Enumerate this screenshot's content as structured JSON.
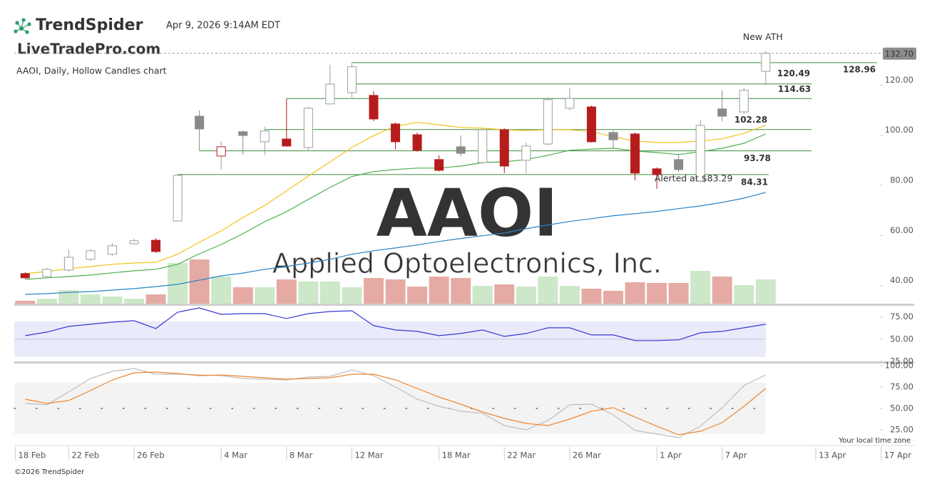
{
  "header": {
    "brand": "TrendSpider",
    "timestamp": "Apr 9, 2026 9:14AM EDT",
    "site": "LiveTradePro.com",
    "chart_label": "AAOI, Daily, Hollow Candles chart",
    "time_zone_note": "Your local time zone",
    "footer": "©2026 TrendSpider"
  },
  "chart_data": [
    {
      "type": "candlestick",
      "watermark_symbol": "AAOI",
      "watermark_company": "Applied Optoelectronics, Inc.",
      "open": [
        44.8,
        43.6,
        46.2,
        50.5,
        52.5,
        56.7,
        58.1,
        65.8,
        107.6,
        91.7,
        101.4,
        97.4,
        98.5,
        95.1,
        112.5,
        117.0,
        115.9,
        104.5,
        100.2,
        90.3,
        95.4,
        89.1,
        102.2,
        90.0,
        96.5,
        110.8,
        111.3,
        101.1,
        100.5,
        86.6,
        90.3,
        81.7,
        110.5,
        109.3,
        125.5
      ],
      "high": [
        45.3,
        47.1,
        54.4,
        54.7,
        57.0,
        58.7,
        59.0,
        84.31,
        109.9,
        97.7,
        101.9,
        103.4,
        114.63,
        111.3,
        128.1,
        128.96,
        117.6,
        105.1,
        101.1,
        92.0,
        99.9,
        102.8,
        102.8,
        97.1,
        115.0,
        119.0,
        111.9,
        101.9,
        101.1,
        87.2,
        92.6,
        106.2,
        117.9,
        119.0,
        133.6
      ],
      "low": [
        42.8,
        43.1,
        45.6,
        49.9,
        51.9,
        56.4,
        53.0,
        65.5,
        93.78,
        86.3,
        92.3,
        92.0,
        95.4,
        94.0,
        112.5,
        115.0,
        105.6,
        94.3,
        93.4,
        85.5,
        91.7,
        88.6,
        84.9,
        84.9,
        96.0,
        109.9,
        97.1,
        94.8,
        82.0,
        78.6,
        85.2,
        81.2,
        105.6,
        108.5,
        119.9
      ],
      "close": [
        43.1,
        46.5,
        51.3,
        53.9,
        55.9,
        57.9,
        53.6,
        84.0,
        102.5,
        95.4,
        99.9,
        101.7,
        95.7,
        110.8,
        120.4,
        127.3,
        106.5,
        97.4,
        94.0,
        86.0,
        92.8,
        102.2,
        87.7,
        95.7,
        114.2,
        114.7,
        97.4,
        98.2,
        84.9,
        84.3,
        86.3,
        103.9,
        107.6,
        117.9,
        132.7
      ],
      "volume": [
        4,
        7,
        19,
        13,
        10,
        7,
        13,
        57,
        62,
        38,
        23,
        23,
        34,
        31,
        31,
        23,
        36,
        34,
        24,
        38,
        36,
        25,
        27,
        24,
        38,
        25,
        21,
        18,
        30,
        29,
        29,
        46,
        38,
        26,
        34
      ],
      "up_color": "#8a8a8a",
      "down_color": "#b71c1c",
      "volume_up_color": "#cce8c8",
      "volume_down_color": "#e6aaa4",
      "overlays": [
        {
          "color": "#f2c219",
          "values": [
            44.8,
            45.6,
            46.8,
            47.6,
            48.5,
            49.0,
            49.3,
            52.5,
            57.3,
            61.8,
            67.2,
            72.0,
            77.8,
            83.7,
            89.4,
            95.1,
            99.9,
            103.6,
            105.1,
            104.2,
            103.1,
            102.8,
            102.2,
            101.9,
            102.2,
            102.2,
            101.4,
            99.4,
            97.7,
            97.1,
            97.1,
            97.7,
            98.6,
            100.8,
            104.0
          ]
        },
        {
          "color": "#4caf50",
          "values": [
            42.5,
            43.1,
            43.6,
            44.2,
            45.1,
            45.9,
            46.5,
            48.5,
            52.7,
            56.4,
            60.7,
            65.5,
            69.5,
            74.4,
            79.2,
            83.5,
            85.5,
            86.3,
            86.9,
            86.9,
            87.7,
            89.1,
            89.4,
            90.3,
            92.0,
            94.0,
            94.5,
            94.8,
            93.7,
            93.1,
            92.3,
            93.4,
            94.8,
            96.8,
            100.5
          ]
        },
        {
          "color": "#2b83c6",
          "values": [
            36.5,
            36.8,
            37.3,
            37.6,
            38.2,
            38.8,
            39.6,
            40.5,
            42.2,
            43.9,
            45.0,
            46.5,
            47.6,
            49.0,
            50.5,
            52.5,
            53.9,
            55.0,
            56.2,
            57.6,
            58.8,
            59.9,
            61.0,
            62.7,
            64.2,
            65.6,
            66.7,
            67.9,
            68.7,
            69.6,
            70.7,
            71.8,
            73.2,
            74.9,
            77.2
          ]
        }
      ],
      "levels": [
        128.96,
        120.49,
        114.63,
        102.28,
        93.78,
        84.31
      ],
      "level_color": "#3d8c3d",
      "last_price": {
        "value": 132.7,
        "label": "132.70"
      },
      "annotations": [
        {
          "text": "New ATH",
          "candle": 34,
          "position": "above"
        },
        {
          "text": "Alerted at $83.29",
          "candle": 30,
          "position": "below"
        }
      ],
      "xlim": [
        -0.5,
        40.75
      ],
      "xticks": [
        {
          "value": -0.45,
          "label": "18 Feb"
        },
        {
          "value": 2,
          "label": "22 Feb"
        },
        {
          "value": 5,
          "label": "26 Feb"
        },
        {
          "value": 9,
          "label": "4 Mar"
        },
        {
          "value": 12,
          "label": "8 Mar"
        },
        {
          "value": 15,
          "label": "12 Mar"
        },
        {
          "value": 19,
          "label": "18 Mar"
        },
        {
          "value": 22,
          "label": "22 Mar"
        },
        {
          "value": 25,
          "label": "26 Mar"
        },
        {
          "value": 29,
          "label": "1 Apr"
        },
        {
          "value": 32,
          "label": "7 Apr"
        },
        {
          "value": 36.3,
          "label": "13 Apr"
        },
        {
          "value": 39.3,
          "label": "17 Apr"
        }
      ],
      "ylim": [
        32.8,
        136.9
      ],
      "yticks": [
        {
          "value": 40,
          "label": "40.00"
        },
        {
          "value": 60,
          "label": "60.00"
        },
        {
          "value": 80,
          "label": "80.00"
        },
        {
          "value": 100,
          "label": "100.00"
        },
        {
          "value": 120,
          "label": "120.00"
        }
      ]
    },
    {
      "type": "line",
      "series": [
        {
          "color": "#3838d0",
          "values": [
            54.0,
            58.0,
            64.4,
            66.8,
            69.2,
            70.8,
            62.0,
            80.4,
            85.2,
            78.0,
            78.8,
            78.8,
            73.2,
            78.8,
            81.2,
            82.0,
            65.2,
            60.4,
            58.8,
            54.0,
            56.4,
            60.4,
            53.2,
            56.4,
            62.8,
            62.8,
            54.8,
            54.8,
            48.4,
            48.4,
            49.2,
            57.2,
            58.8,
            62.8,
            66.8
          ]
        }
      ],
      "band": [
        30,
        70
      ],
      "band_color": "#e9ebfb",
      "midline": 50,
      "midline_style": "solid",
      "ylim": [
        24.2,
        87.6
      ],
      "yticks": [
        {
          "value": 25,
          "label": "25.00"
        },
        {
          "value": 50,
          "label": "50.00"
        },
        {
          "value": 75,
          "label": "75.00"
        }
      ]
    },
    {
      "type": "line",
      "series": [
        {
          "color": "#bdbdbd",
          "values": [
            55.8,
            54.2,
            69.2,
            85.0,
            93.3,
            96.7,
            90.0,
            90.0,
            89.2,
            88.3,
            85.0,
            84.2,
            83.3,
            86.7,
            87.5,
            95.0,
            88.3,
            75.0,
            60.8,
            52.5,
            46.7,
            44.2,
            30.0,
            25.0,
            35.8,
            54.2,
            55.0,
            42.5,
            24.2,
            20.0,
            15.8,
            29.2,
            50.8,
            76.7,
            89.2
          ]
        },
        {
          "color": "#f0862a",
          "values": [
            60.8,
            55.8,
            59.2,
            70.8,
            83.3,
            91.7,
            92.5,
            90.8,
            88.3,
            89.2,
            87.5,
            85.8,
            84.2,
            85.0,
            85.8,
            90.0,
            90.0,
            83.3,
            73.3,
            63.3,
            55.0,
            45.8,
            38.3,
            32.5,
            30.0,
            37.5,
            46.7,
            50.8,
            40.0,
            29.2,
            19.2,
            23.3,
            33.3,
            52.5,
            73.3
          ]
        }
      ],
      "band": [
        20,
        80
      ],
      "band_color": "#f3f3f3",
      "midline": 50,
      "midline_style": "dotted",
      "ylim": [
        10.8,
        102.5
      ],
      "yticks": [
        {
          "value": 25,
          "label": "25.00"
        },
        {
          "value": 50,
          "label": "50.00"
        },
        {
          "value": 75,
          "label": "75.00"
        },
        {
          "value": 100,
          "label": "100.00"
        }
      ]
    }
  ]
}
